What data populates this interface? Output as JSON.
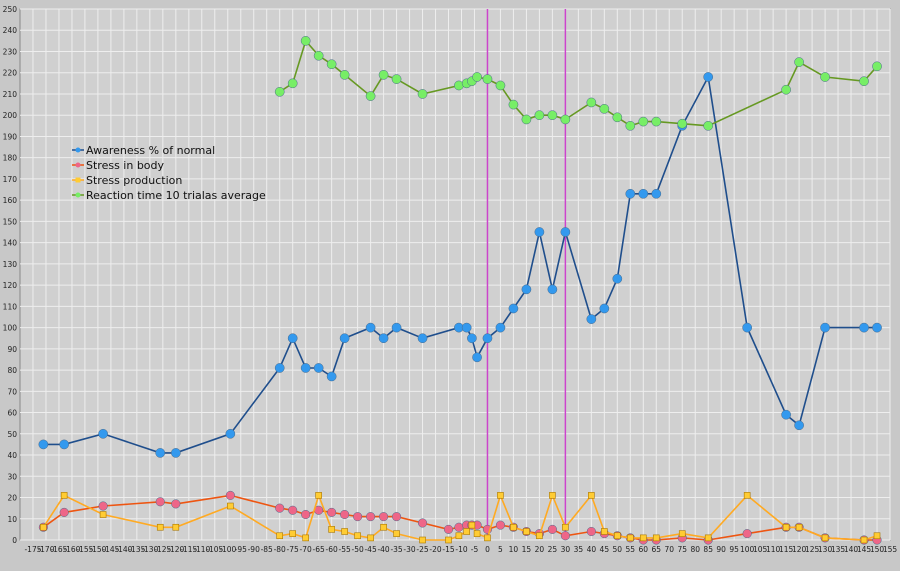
{
  "chart_data": {
    "type": "line",
    "title": "",
    "xlabel": "",
    "ylabel": "",
    "xlim": [
      -180,
      155
    ],
    "ylim": [
      0,
      250
    ],
    "xticks": [
      -175,
      -170,
      -165,
      -160,
      -155,
      -150,
      -145,
      -140,
      -135,
      -130,
      -125,
      -120,
      -115,
      -110,
      -105,
      -100,
      -95,
      -90,
      -85,
      -80,
      -75,
      -70,
      -65,
      -60,
      -55,
      -50,
      -45,
      -40,
      -35,
      -30,
      -25,
      -20,
      -15,
      -10,
      -5,
      0,
      5,
      10,
      15,
      20,
      25,
      30,
      35,
      40,
      45,
      50,
      55,
      60,
      65,
      70,
      75,
      80,
      85,
      90,
      95,
      100,
      105,
      110,
      115,
      120,
      125,
      130,
      135,
      140,
      145,
      150,
      155
    ],
    "yticks": [
      0,
      10,
      20,
      30,
      40,
      50,
      60,
      70,
      80,
      90,
      100,
      110,
      120,
      130,
      140,
      150,
      160,
      170,
      180,
      190,
      200,
      210,
      220,
      230,
      240,
      250
    ],
    "grid": true,
    "legend_position": "left",
    "vertical_lines": [
      0,
      30
    ],
    "vertical_line_color": "#cc44cc",
    "series": [
      {
        "name": "Awareness % of normal",
        "line_color": "#1f4e8c",
        "marker_color": "#3399ee",
        "marker": "circle",
        "x": [
          -171,
          -163,
          -148,
          -126,
          -120,
          -99,
          -80,
          -75,
          -70,
          -65,
          -60,
          -55,
          -45,
          -40,
          -35,
          -25,
          -11,
          -8,
          -6,
          -4,
          0,
          5,
          10,
          15,
          20,
          25,
          30,
          40,
          45,
          50,
          55,
          60,
          65,
          75,
          85,
          100,
          115,
          120,
          130,
          145,
          150
        ],
        "y": [
          45,
          45,
          50,
          41,
          41,
          50,
          81,
          95,
          81,
          81,
          77,
          95,
          100,
          95,
          100,
          95,
          100,
          100,
          95,
          86,
          95,
          100,
          109,
          118,
          145,
          118,
          145,
          104,
          109,
          123,
          163,
          163,
          163,
          195,
          218,
          100,
          59,
          54,
          100,
          100,
          100
        ]
      },
      {
        "name": "Stress in body",
        "line_color": "#ee5511",
        "marker_color": "#ee6688",
        "marker": "circle",
        "x": [
          -171,
          -163,
          -148,
          -126,
          -120,
          -99,
          -80,
          -75,
          -70,
          -65,
          -60,
          -55,
          -50,
          -45,
          -40,
          -35,
          -25,
          -15,
          -11,
          -8,
          -6,
          -4,
          0,
          5,
          10,
          15,
          20,
          25,
          30,
          40,
          45,
          50,
          55,
          60,
          65,
          75,
          85,
          100,
          115,
          120,
          130,
          145,
          150
        ],
        "y": [
          6,
          13,
          16,
          18,
          17,
          21,
          15,
          14,
          12,
          14,
          13,
          12,
          11,
          11,
          11,
          11,
          8,
          5,
          6,
          7,
          7,
          7,
          5,
          7,
          6,
          4,
          3,
          5,
          2,
          4,
          3,
          2,
          1,
          0,
          0,
          1,
          0,
          3,
          6,
          6,
          1,
          0,
          0
        ]
      },
      {
        "name": "Stress production",
        "line_color": "#ffaa22",
        "marker_color": "#ffcc33",
        "marker": "square",
        "x": [
          -171,
          -163,
          -148,
          -126,
          -120,
          -99,
          -80,
          -75,
          -70,
          -65,
          -60,
          -55,
          -50,
          -45,
          -40,
          -35,
          -25,
          -15,
          -11,
          -8,
          -6,
          -4,
          0,
          5,
          10,
          15,
          20,
          25,
          30,
          40,
          45,
          50,
          55,
          60,
          65,
          75,
          85,
          100,
          115,
          120,
          130,
          145,
          150
        ],
        "y": [
          6,
          21,
          12,
          6,
          6,
          16,
          2,
          3,
          1,
          21,
          5,
          4,
          2,
          1,
          6,
          3,
          0,
          0,
          2,
          4,
          7,
          3,
          1,
          21,
          6,
          4,
          2,
          21,
          6,
          21,
          4,
          2,
          1,
          1,
          1,
          3,
          1,
          21,
          6,
          6,
          1,
          0,
          2
        ]
      },
      {
        "name": "Reaction time 10 trialas average",
        "line_color": "#669922",
        "marker_color": "#77ee66",
        "marker": "circle",
        "x": [
          -80,
          -75,
          -70,
          -65,
          -60,
          -55,
          -45,
          -40,
          -35,
          -25,
          -11,
          -8,
          -6,
          -4,
          0,
          5,
          10,
          15,
          20,
          25,
          30,
          40,
          45,
          50,
          55,
          60,
          65,
          75,
          85,
          115,
          120,
          130,
          145,
          150
        ],
        "y": [
          211,
          215,
          235,
          228,
          224,
          219,
          209,
          219,
          217,
          210,
          214,
          215,
          216,
          218,
          217,
          214,
          205,
          198,
          200,
          200,
          198,
          206,
          203,
          199,
          195,
          197,
          197,
          196,
          195,
          212,
          225,
          218,
          216,
          223
        ]
      }
    ]
  }
}
